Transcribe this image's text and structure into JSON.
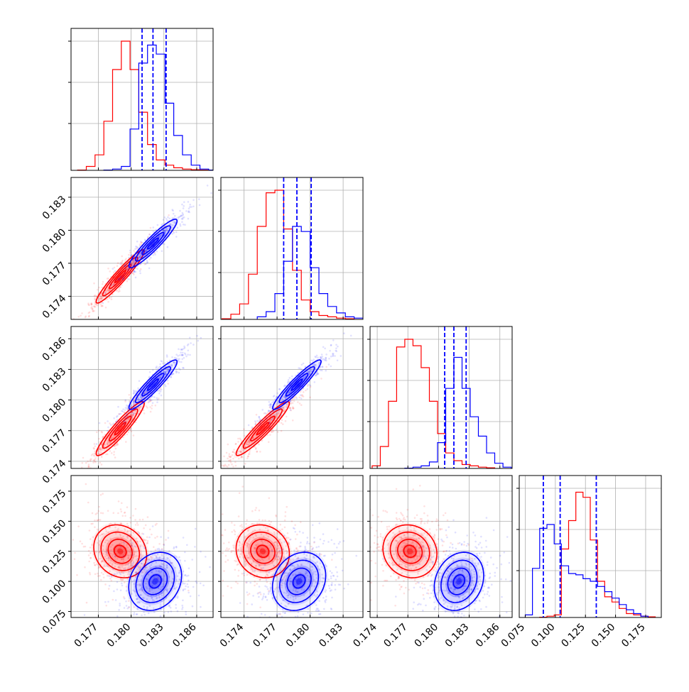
{
  "chart_data": {
    "type": "corner",
    "description_parameters": 4,
    "colors": {
      "red": "#ff0000",
      "blue": "#0000ff",
      "grid": "#b0b0b0"
    },
    "series": [
      {
        "name": "",
        "color": "#ff0000"
      },
      {
        "name": "",
        "color": "#0000ff"
      }
    ],
    "axes": [
      {
        "range": [
          0.1745,
          0.1875
        ],
        "ticks": [
          "0.177",
          "0.180",
          "0.183",
          "0.186"
        ],
        "tick_values": [
          0.177,
          0.18,
          0.183,
          0.186
        ]
      },
      {
        "range": [
          0.1719,
          0.1848
        ],
        "ticks": [
          "0.174",
          "0.177",
          "0.180",
          "0.183"
        ],
        "tick_values": [
          0.174,
          0.177,
          0.18,
          0.183
        ]
      },
      {
        "range": [
          0.1733,
          0.1872
        ],
        "ticks": [
          "0.174",
          "0.177",
          "0.180",
          "0.183",
          "0.186"
        ],
        "tick_values": [
          0.174,
          0.177,
          0.18,
          0.183,
          0.186
        ]
      },
      {
        "range": [
          0.07,
          0.188
        ],
        "ticks": [
          "0.075",
          "0.100",
          "0.125",
          "0.150",
          "0.175"
        ],
        "tick_values": [
          0.075,
          0.1,
          0.125,
          0.15,
          0.175
        ]
      }
    ],
    "histograms": [
      {
        "param": 0,
        "quantiles_blue": [
          0.181,
          0.182,
          0.1832
        ],
        "red": [
          [
            0.1755,
            0.002
          ],
          [
            0.1763,
            0.03
          ],
          [
            0.1771,
            0.12
          ],
          [
            0.1779,
            0.38
          ],
          [
            0.1787,
            0.78
          ],
          [
            0.1795,
            1.0
          ],
          [
            0.1803,
            0.78
          ],
          [
            0.1811,
            0.45
          ],
          [
            0.1819,
            0.2
          ],
          [
            0.1827,
            0.08
          ],
          [
            0.1835,
            0.04
          ],
          [
            0.1843,
            0.02
          ],
          [
            0.1851,
            0.01
          ],
          [
            0.1859,
            0.005
          ],
          [
            0.1867,
            0.002
          ]
        ],
        "blue": [
          [
            0.1779,
            0.002
          ],
          [
            0.1787,
            0.01
          ],
          [
            0.1795,
            0.03
          ],
          [
            0.1803,
            0.32
          ],
          [
            0.1811,
            0.83
          ],
          [
            0.1819,
            0.97
          ],
          [
            0.1827,
            0.9
          ],
          [
            0.1835,
            0.52
          ],
          [
            0.1843,
            0.27
          ],
          [
            0.1851,
            0.12
          ],
          [
            0.1859,
            0.04
          ],
          [
            0.1867,
            0.01
          ],
          [
            0.1875,
            0.002
          ]
        ]
      },
      {
        "param": 1,
        "quantiles_blue": [
          0.1776,
          0.1788,
          0.1801
        ],
        "red": [
          [
            0.1724,
            0.005
          ],
          [
            0.1732,
            0.04
          ],
          [
            0.174,
            0.12
          ],
          [
            0.1748,
            0.35
          ],
          [
            0.1756,
            0.72
          ],
          [
            0.1764,
            0.98
          ],
          [
            0.1772,
            1.0
          ],
          [
            0.178,
            0.7
          ],
          [
            0.1788,
            0.38
          ],
          [
            0.1796,
            0.15
          ],
          [
            0.1804,
            0.06
          ],
          [
            0.1812,
            0.03
          ],
          [
            0.182,
            0.02
          ],
          [
            0.1828,
            0.01
          ],
          [
            0.1836,
            0.005
          ]
        ],
        "blue": [
          [
            0.1756,
            0.02
          ],
          [
            0.1764,
            0.06
          ],
          [
            0.1772,
            0.2
          ],
          [
            0.178,
            0.45
          ],
          [
            0.1788,
            0.72
          ],
          [
            0.1796,
            0.68
          ],
          [
            0.1804,
            0.4
          ],
          [
            0.1812,
            0.2
          ],
          [
            0.182,
            0.1
          ],
          [
            0.1828,
            0.05
          ],
          [
            0.1836,
            0.02
          ],
          [
            0.1844,
            0.01
          ]
        ]
      },
      {
        "param": 2,
        "quantiles_blue": [
          0.1806,
          0.1815,
          0.1827
        ],
        "red": [
          [
            0.1739,
            0.02
          ],
          [
            0.1747,
            0.17
          ],
          [
            0.1755,
            0.52
          ],
          [
            0.1763,
            0.94
          ],
          [
            0.1771,
            1.0
          ],
          [
            0.1779,
            0.95
          ],
          [
            0.1787,
            0.78
          ],
          [
            0.1795,
            0.52
          ],
          [
            0.1803,
            0.27
          ],
          [
            0.1811,
            0.12
          ],
          [
            0.1819,
            0.06
          ],
          [
            0.1827,
            0.03
          ],
          [
            0.1835,
            0.02
          ],
          [
            0.1843,
            0.01
          ],
          [
            0.1851,
            0.005
          ]
        ],
        "blue": [
          [
            0.1771,
            0.002
          ],
          [
            0.1779,
            0.01
          ],
          [
            0.1787,
            0.02
          ],
          [
            0.1795,
            0.05
          ],
          [
            0.1803,
            0.2
          ],
          [
            0.1811,
            0.62
          ],
          [
            0.1819,
            0.86
          ],
          [
            0.1827,
            0.62
          ],
          [
            0.1835,
            0.4
          ],
          [
            0.1843,
            0.25
          ],
          [
            0.1851,
            0.12
          ],
          [
            0.1859,
            0.04
          ],
          [
            0.1867,
            0.01
          ]
        ]
      },
      {
        "param": 3,
        "quantiles_blue": [
          0.09,
          0.104,
          0.134
        ],
        "red": [
          [
            0.09,
            0.002
          ],
          [
            0.096,
            0.01
          ],
          [
            0.102,
            0.02
          ],
          [
            0.108,
            0.53
          ],
          [
            0.114,
            0.75
          ],
          [
            0.12,
            0.97
          ],
          [
            0.126,
            0.93
          ],
          [
            0.132,
            0.6
          ],
          [
            0.138,
            0.28
          ],
          [
            0.144,
            0.16
          ],
          [
            0.15,
            0.12
          ],
          [
            0.156,
            0.07
          ],
          [
            0.162,
            0.03
          ],
          [
            0.168,
            0.02
          ],
          [
            0.174,
            0.01
          ],
          [
            0.18,
            0.005
          ]
        ],
        "blue": [
          [
            0.078,
            0.02
          ],
          [
            0.084,
            0.38
          ],
          [
            0.09,
            0.69
          ],
          [
            0.096,
            0.72
          ],
          [
            0.102,
            0.57
          ],
          [
            0.108,
            0.4
          ],
          [
            0.114,
            0.34
          ],
          [
            0.12,
            0.33
          ],
          [
            0.126,
            0.3
          ],
          [
            0.132,
            0.28
          ],
          [
            0.138,
            0.24
          ],
          [
            0.144,
            0.2
          ],
          [
            0.15,
            0.15
          ],
          [
            0.156,
            0.1
          ],
          [
            0.162,
            0.06
          ],
          [
            0.168,
            0.03
          ],
          [
            0.174,
            0.01
          ]
        ]
      }
    ],
    "joint": {
      "red": [
        {
          "x": 0,
          "y": 1,
          "mx": 0.179,
          "my": 0.1758,
          "sx": 0.001,
          "sy": 0.0011,
          "rho": 0.95
        },
        {
          "x": 0,
          "y": 2,
          "mx": 0.179,
          "my": 0.1772,
          "sx": 0.001,
          "sy": 0.0012,
          "rho": 0.93
        },
        {
          "x": 1,
          "y": 2,
          "mx": 0.1757,
          "my": 0.1772,
          "sx": 0.0011,
          "sy": 0.0012,
          "rho": 0.94
        },
        {
          "x": 0,
          "y": 3,
          "mx": 0.179,
          "my": 0.125,
          "sx": 0.0011,
          "sy": 0.01,
          "rho": -0.15
        },
        {
          "x": 1,
          "y": 3,
          "mx": 0.1757,
          "my": 0.125,
          "sx": 0.0011,
          "sy": 0.01,
          "rho": -0.1
        },
        {
          "x": 2,
          "y": 3,
          "mx": 0.1772,
          "my": 0.125,
          "sx": 0.0012,
          "sy": 0.01,
          "rho": -0.1
        }
      ],
      "blue": [
        {
          "x": 0,
          "y": 1,
          "mx": 0.182,
          "my": 0.1788,
          "sx": 0.001,
          "sy": 0.001,
          "rho": 0.93
        },
        {
          "x": 0,
          "y": 2,
          "mx": 0.182,
          "my": 0.1815,
          "sx": 0.001,
          "sy": 0.0011,
          "rho": 0.93
        },
        {
          "x": 1,
          "y": 2,
          "mx": 0.1788,
          "my": 0.1815,
          "sx": 0.001,
          "sy": 0.0011,
          "rho": 0.94
        },
        {
          "x": 0,
          "y": 3,
          "mx": 0.1822,
          "my": 0.1,
          "sx": 0.0011,
          "sy": 0.011,
          "rho": 0.2
        },
        {
          "x": 1,
          "y": 3,
          "mx": 0.179,
          "my": 0.1,
          "sx": 0.0011,
          "sy": 0.011,
          "rho": 0.2
        },
        {
          "x": 2,
          "y": 3,
          "mx": 0.182,
          "my": 0.1,
          "sx": 0.0011,
          "sy": 0.011,
          "rho": 0.2
        }
      ]
    },
    "grid": true
  }
}
